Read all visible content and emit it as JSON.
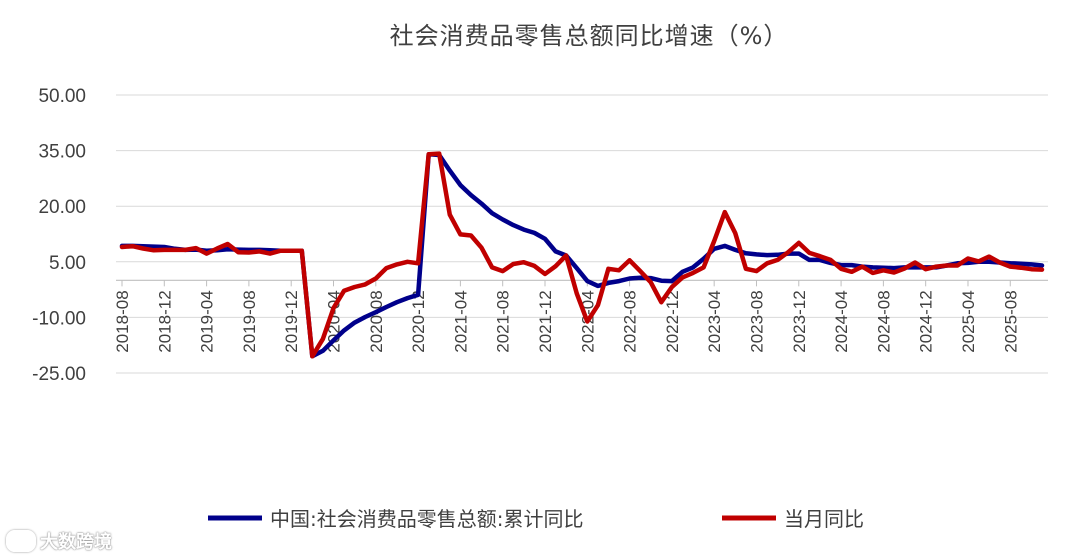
{
  "watermark": {
    "text": "大数跨境",
    "icon": "logo-icon"
  },
  "chart_data": {
    "type": "line",
    "title": "社会消费品零售总额同比增速（%）",
    "xlabel": "",
    "ylabel": "",
    "ylim": [
      -25,
      50
    ],
    "yticks": [
      "50.00",
      "35.00",
      "20.00",
      "5.00",
      "-10.00",
      "-25.00"
    ],
    "ytick_values": [
      50,
      35,
      20,
      5,
      -10,
      -25
    ],
    "x_baseline": 0,
    "grid": true,
    "legend": "bottom",
    "x": [
      "2018-08",
      "2018-09",
      "2018-10",
      "2018-11",
      "2018-12",
      "2019-01",
      "2019-02",
      "2019-03",
      "2019-04",
      "2019-05",
      "2019-06",
      "2019-07",
      "2019-08",
      "2019-09",
      "2019-10",
      "2019-11",
      "2019-12",
      "2020-01",
      "2020-02",
      "2020-03",
      "2020-04",
      "2020-05",
      "2020-06",
      "2020-07",
      "2020-08",
      "2020-09",
      "2020-10",
      "2020-11",
      "2020-12",
      "2021-01",
      "2021-02",
      "2021-03",
      "2021-04",
      "2021-05",
      "2021-06",
      "2021-07",
      "2021-08",
      "2021-09",
      "2021-10",
      "2021-11",
      "2021-12",
      "2022-01",
      "2022-02",
      "2022-03",
      "2022-04",
      "2022-05",
      "2022-06",
      "2022-07",
      "2022-08",
      "2022-09",
      "2022-10",
      "2022-11",
      "2022-12",
      "2023-01",
      "2023-02",
      "2023-03",
      "2023-04",
      "2023-05",
      "2023-06",
      "2023-07",
      "2023-08",
      "2023-09",
      "2023-10",
      "2023-11",
      "2023-12",
      "2024-01",
      "2024-02",
      "2024-03",
      "2024-04",
      "2024-05",
      "2024-06",
      "2024-07",
      "2024-08",
      "2024-09",
      "2024-10",
      "2024-11",
      "2024-12",
      "2025-01",
      "2025-02",
      "2025-03",
      "2025-04",
      "2025-05",
      "2025-06",
      "2025-07",
      "2025-08",
      "2025-09",
      "2025-10",
      "2025-11"
    ],
    "xtick_labels": [
      "2018-08",
      "2018-12",
      "2019-04",
      "2019-08",
      "2019-12",
      "2020-04",
      "2020-08",
      "2020-12",
      "2021-04",
      "2021-08",
      "2021-12",
      "2022-04",
      "2022-08",
      "2022-12",
      "2023-04",
      "2023-08",
      "2023-12",
      "2024-04",
      "2024-08",
      "2024-12",
      "2025-04",
      "2025-08"
    ],
    "series": [
      {
        "name": "中国:社会消费品零售总额:累计同比",
        "color": "#00008b",
        "values": [
          9.3,
          9.3,
          9.2,
          9.1,
          9.0,
          8.5,
          8.2,
          8.3,
          8.0,
          8.1,
          8.4,
          8.3,
          8.2,
          8.2,
          8.1,
          8.0,
          8.0,
          8.0,
          -20.5,
          -19.0,
          -16.2,
          -13.5,
          -11.4,
          -9.9,
          -8.6,
          -7.2,
          -5.9,
          -4.8,
          -3.9,
          34.0,
          33.8,
          29.6,
          25.7,
          23.0,
          20.7,
          18.1,
          16.4,
          14.9,
          13.7,
          12.8,
          11.2,
          7.8,
          6.7,
          3.3,
          -0.2,
          -1.5,
          -0.7,
          -0.2,
          0.5,
          0.7,
          0.6,
          -0.1,
          -0.2,
          2.3,
          3.5,
          5.8,
          8.5,
          9.3,
          8.2,
          7.3,
          7.0,
          6.8,
          6.9,
          7.2,
          7.2,
          5.5,
          5.5,
          4.7,
          4.1,
          4.1,
          3.7,
          3.5,
          3.4,
          3.3,
          3.5,
          3.5,
          3.5,
          3.5,
          4.0,
          4.6,
          4.7,
          5.0,
          5.0,
          4.8,
          4.6,
          4.5,
          4.3,
          4.0
        ]
      },
      {
        "name": "当月同比",
        "color": "#c00000",
        "values": [
          9.0,
          9.2,
          8.6,
          8.1,
          8.2,
          8.2,
          8.2,
          8.7,
          7.2,
          8.6,
          9.8,
          7.6,
          7.5,
          7.8,
          7.2,
          8.0,
          8.0,
          8.0,
          -20.5,
          -15.8,
          -7.5,
          -2.8,
          -1.8,
          -1.1,
          0.5,
          3.3,
          4.3,
          5.0,
          4.6,
          34.0,
          34.2,
          17.7,
          12.4,
          12.1,
          8.8,
          3.5,
          2.5,
          4.4,
          4.9,
          3.9,
          1.7,
          3.8,
          6.7,
          -3.5,
          -11.1,
          -6.7,
          3.1,
          2.7,
          5.4,
          2.5,
          -0.5,
          -5.9,
          -1.8,
          0.8,
          2.0,
          3.5,
          10.6,
          18.4,
          12.7,
          3.1,
          2.5,
          4.6,
          5.5,
          7.6,
          10.1,
          7.4,
          6.5,
          5.5,
          3.1,
          2.3,
          3.7,
          2.0,
          2.7,
          2.1,
          3.2,
          4.8,
          3.0,
          3.7,
          4.0,
          4.0,
          5.9,
          5.1,
          6.4,
          4.8,
          3.7,
          3.4,
          3.0,
          2.9
        ]
      }
    ]
  }
}
